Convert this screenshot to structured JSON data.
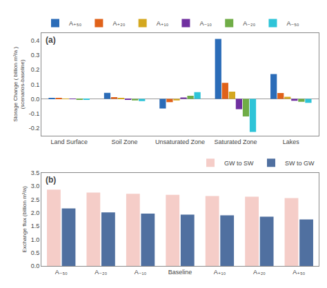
{
  "chart_data": [
    {
      "type": "bar",
      "title": "(a)",
      "ylabel": "Storage Change ( billion m³/a )\n(scenarios-baseline)",
      "categories": [
        "Land Surface",
        "Soil Zone",
        "Unsaturated Zone",
        "Saturated Zone",
        "Lakes"
      ],
      "series": [
        {
          "name": "A₊₅₀",
          "color": "#2b6cb8",
          "values": [
            0.005,
            0.042,
            -0.065,
            0.41,
            0.17
          ]
        },
        {
          "name": "A₊₂₀",
          "color": "#e0621a",
          "values": [
            0.003,
            0.012,
            -0.022,
            0.11,
            0.04
          ]
        },
        {
          "name": "A₊₁₀",
          "color": "#d4a820",
          "values": [
            0.001,
            0.005,
            -0.01,
            0.05,
            0.015
          ]
        },
        {
          "name": "A₋₁₀",
          "color": "#7030a0",
          "values": [
            -0.001,
            -0.005,
            0.01,
            -0.07,
            -0.012
          ]
        },
        {
          "name": "A₋₂₀",
          "color": "#70ad47",
          "values": [
            -0.003,
            -0.01,
            0.022,
            -0.12,
            -0.02
          ]
        },
        {
          "name": "A₋₅₀",
          "color": "#2ec4d8",
          "values": [
            -0.005,
            -0.015,
            0.046,
            -0.225,
            -0.027
          ]
        }
      ],
      "ylim": [
        -0.25,
        0.45
      ],
      "yticks": [
        -0.2,
        -0.1,
        {
          "value": 0,
          "label": "0.0"
        },
        0.1,
        0.2,
        0.3,
        0.4
      ],
      "grid": false,
      "legend": "top left"
    },
    {
      "type": "bar",
      "title": "(b)",
      "ylabel": "Exchange flux (billion m³/a)",
      "categories": [
        "A₋₅₀",
        "A₋₂₀",
        "A₋₁₀",
        "Baseline",
        "A₊₁₀",
        "A₊₂₀",
        "A₊₅₀"
      ],
      "series": [
        {
          "name": "GW to SW",
          "color": "#f5cdc8",
          "values": [
            2.87,
            2.76,
            2.71,
            2.67,
            2.63,
            2.6,
            2.55
          ]
        },
        {
          "name": "SW to GW",
          "color": "#5070a0",
          "values": [
            2.16,
            2.01,
            1.97,
            1.93,
            1.9,
            1.85,
            1.75
          ]
        }
      ],
      "ylim": [
        0,
        3.5
      ],
      "yticks": [
        {
          "value": 0,
          "label": "0.0"
        },
        0.5,
        {
          "value": 1.0,
          "label": "1.0"
        },
        1.5,
        {
          "value": 2.0,
          "label": "2.0"
        },
        2.5,
        {
          "value": 3.0,
          "label": "3.0"
        },
        3.5
      ],
      "grid": false,
      "legend": "top right"
    }
  ]
}
